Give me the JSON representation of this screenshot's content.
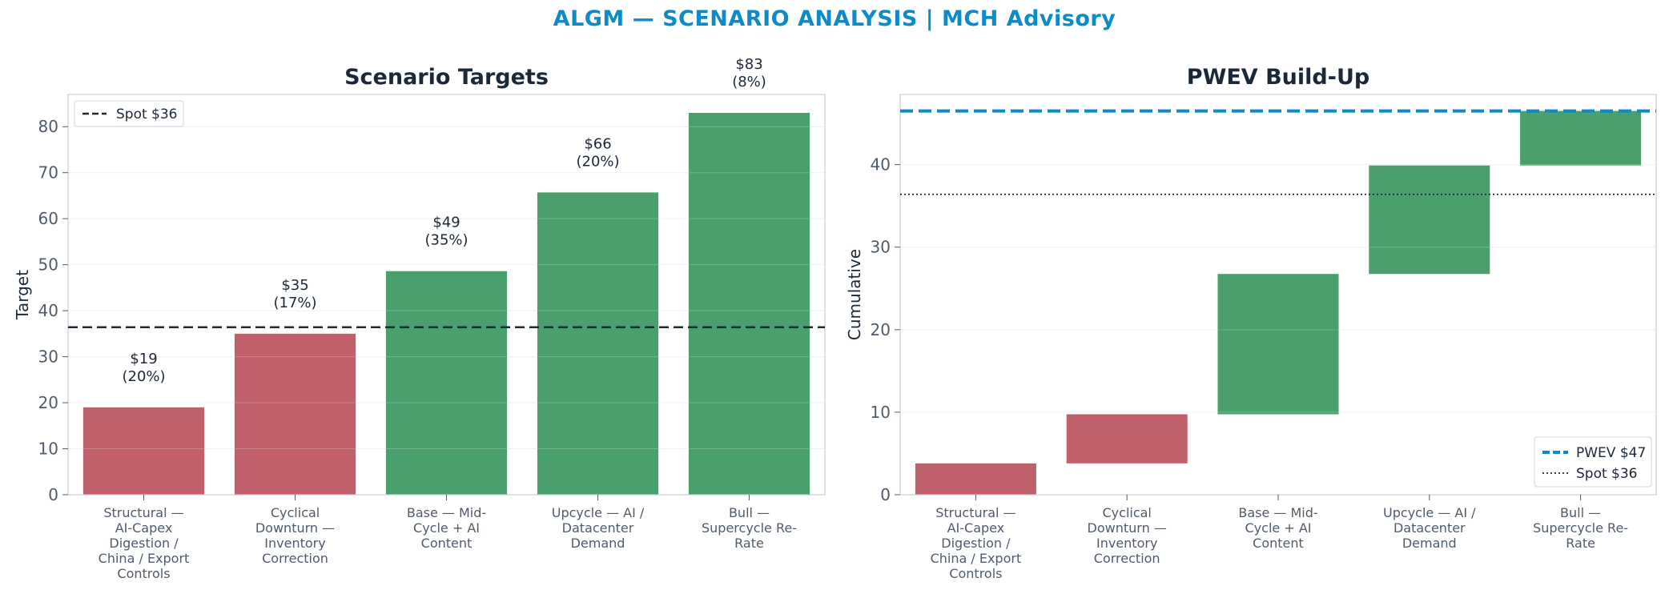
{
  "suptitle": "ALGM — SCENARIO ANALYSIS | MCH Advisory",
  "colors": {
    "downside": "#c0606a",
    "upside": "#4aa06c",
    "pwev": "#0c8bc6",
    "spot": "#1b2838",
    "title": "#0c8bc6"
  },
  "chart_data": [
    {
      "type": "bar",
      "title": "Scenario Targets",
      "ylabel": "Target",
      "xlabel": "",
      "ylim": [
        0,
        87
      ],
      "yticks": [
        0,
        10,
        20,
        30,
        40,
        50,
        60,
        70,
        80
      ],
      "grid": true,
      "legend": {
        "placement": "top-left",
        "entries": [
          "Spot $36"
        ]
      },
      "spot": 36.4,
      "categories": [
        [
          "Structural —",
          "AI-Capex",
          "Digestion /",
          "China / Export",
          "Controls"
        ],
        [
          "Cyclical",
          "Downturn —",
          "Inventory",
          "Correction"
        ],
        [
          "Base — Mid-",
          "Cycle + AI",
          "Content"
        ],
        [
          "Upcycle — AI /",
          "Datacenter",
          "Demand"
        ],
        [
          "Bull —",
          "Supercycle Re-",
          "Rate"
        ]
      ],
      "values": [
        19,
        35,
        48.6,
        65.7,
        83
      ],
      "bar_colors": [
        "downside",
        "downside",
        "upside",
        "upside",
        "upside"
      ],
      "data_labels": [
        [
          "$19",
          "(20%)"
        ],
        [
          "$35",
          "(17%)"
        ],
        [
          "$49",
          "(35%)"
        ],
        [
          "$66",
          "(20%)"
        ],
        [
          "$83",
          "(8%)"
        ]
      ]
    },
    {
      "type": "bar",
      "subtype": "waterfall",
      "title": "PWEV Build-Up",
      "ylabel": "Cumulative",
      "xlabel": "",
      "ylim": [
        0,
        48.5
      ],
      "yticks": [
        0,
        10,
        20,
        30,
        40
      ],
      "grid": true,
      "legend": {
        "placement": "bottom-right",
        "entries": [
          "PWEV $47",
          "Spot $36"
        ]
      },
      "pwev": 46.5,
      "spot": 36.4,
      "categories": [
        [
          "Structural —",
          "AI-Capex",
          "Digestion /",
          "China / Export",
          "Controls"
        ],
        [
          "Cyclical",
          "Downturn —",
          "Inventory",
          "Correction"
        ],
        [
          "Base — Mid-",
          "Cycle + AI",
          "Content"
        ],
        [
          "Upcycle — AI /",
          "Datacenter",
          "Demand"
        ],
        [
          "Bull —",
          "Supercycle Re-",
          "Rate"
        ]
      ],
      "bottoms": [
        0,
        3.8,
        9.75,
        26.75,
        39.9
      ],
      "tops": [
        3.8,
        9.75,
        26.75,
        39.9,
        46.5
      ],
      "bar_colors": [
        "downside",
        "downside",
        "upside",
        "upside",
        "upside"
      ]
    }
  ]
}
